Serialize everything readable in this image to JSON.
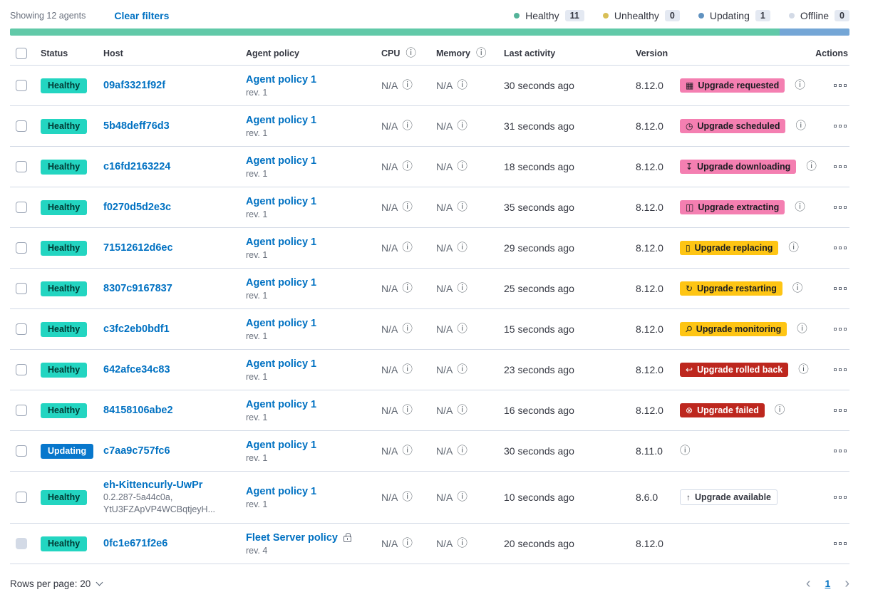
{
  "toolbar": {
    "showing": "Showing 12 agents",
    "clear_filters": "Clear filters",
    "legend": [
      {
        "label": "Healthy",
        "count": "11",
        "dot_color": "#54B399"
      },
      {
        "label": "Unhealthy",
        "count": "0",
        "dot_color": "#D8BF57"
      },
      {
        "label": "Updating",
        "count": "1",
        "dot_color": "#6092C0"
      },
      {
        "label": "Offline",
        "count": "0",
        "dot_color": "#D3DAE6"
      }
    ]
  },
  "status_bar": {
    "segments": [
      {
        "status": "healthy",
        "color": "#61C9A8",
        "fraction": 0.9167
      },
      {
        "status": "updating",
        "color": "#74A6D6",
        "fraction": 0.0833
      }
    ]
  },
  "table": {
    "headers": [
      {
        "label": "Status"
      },
      {
        "label": "Host"
      },
      {
        "label": "Agent policy"
      },
      {
        "label": "CPU",
        "info": true
      },
      {
        "label": "Memory",
        "info": true
      },
      {
        "label": "Last activity"
      },
      {
        "label": "Version"
      },
      {
        "label": "Actions"
      }
    ],
    "rows": [
      {
        "status": {
          "label": "Healthy",
          "variant": "healthy"
        },
        "host": {
          "name": "09af3321f92f"
        },
        "policy": {
          "name": "Agent policy 1",
          "rev": "rev. 1"
        },
        "cpu": "N/A",
        "memory": "N/A",
        "last_activity": "30 seconds ago",
        "version": "8.12.0",
        "upgrade": {
          "label": "Upgrade requested",
          "variant": "pink",
          "icon": "calendar-icon"
        },
        "info": true
      },
      {
        "status": {
          "label": "Healthy",
          "variant": "healthy"
        },
        "host": {
          "name": "5b48deff76d3"
        },
        "policy": {
          "name": "Agent policy 1",
          "rev": "rev. 1"
        },
        "cpu": "N/A",
        "memory": "N/A",
        "last_activity": "31 seconds ago",
        "version": "8.12.0",
        "upgrade": {
          "label": "Upgrade scheduled",
          "variant": "pink",
          "icon": "clock-icon"
        },
        "info": true
      },
      {
        "status": {
          "label": "Healthy",
          "variant": "healthy"
        },
        "host": {
          "name": "c16fd2163224"
        },
        "policy": {
          "name": "Agent policy 1",
          "rev": "rev. 1"
        },
        "cpu": "N/A",
        "memory": "N/A",
        "last_activity": "18 seconds ago",
        "version": "8.12.0",
        "upgrade": {
          "label": "Upgrade downloading",
          "variant": "pink",
          "icon": "download-icon"
        },
        "info": true
      },
      {
        "status": {
          "label": "Healthy",
          "variant": "healthy"
        },
        "host": {
          "name": "f0270d5d2e3c"
        },
        "policy": {
          "name": "Agent policy 1",
          "rev": "rev. 1"
        },
        "cpu": "N/A",
        "memory": "N/A",
        "last_activity": "35 seconds ago",
        "version": "8.12.0",
        "upgrade": {
          "label": "Upgrade extracting",
          "variant": "pink",
          "icon": "package-icon"
        },
        "info": true
      },
      {
        "status": {
          "label": "Healthy",
          "variant": "healthy"
        },
        "host": {
          "name": "71512612d6ec"
        },
        "policy": {
          "name": "Agent policy 1",
          "rev": "rev. 1"
        },
        "cpu": "N/A",
        "memory": "N/A",
        "last_activity": "29 seconds ago",
        "version": "8.12.0",
        "upgrade": {
          "label": "Upgrade replacing",
          "variant": "warning",
          "icon": "document-icon"
        },
        "info": true
      },
      {
        "status": {
          "label": "Healthy",
          "variant": "healthy"
        },
        "host": {
          "name": "8307c9167837"
        },
        "policy": {
          "name": "Agent policy 1",
          "rev": "rev. 1"
        },
        "cpu": "N/A",
        "memory": "N/A",
        "last_activity": "25 seconds ago",
        "version": "8.12.0",
        "upgrade": {
          "label": "Upgrade restarting",
          "variant": "warning",
          "icon": "refresh-icon"
        },
        "info": true
      },
      {
        "status": {
          "label": "Healthy",
          "variant": "healthy"
        },
        "host": {
          "name": "c3fc2eb0bdf1"
        },
        "policy": {
          "name": "Agent policy 1",
          "rev": "rev. 1"
        },
        "cpu": "N/A",
        "memory": "N/A",
        "last_activity": "15 seconds ago",
        "version": "8.12.0",
        "upgrade": {
          "label": "Upgrade monitoring",
          "variant": "warning",
          "icon": "inspect-icon"
        },
        "info": true
      },
      {
        "status": {
          "label": "Healthy",
          "variant": "healthy"
        },
        "host": {
          "name": "642afce34c83"
        },
        "policy": {
          "name": "Agent policy 1",
          "rev": "rev. 1"
        },
        "cpu": "N/A",
        "memory": "N/A",
        "last_activity": "23 seconds ago",
        "version": "8.12.0",
        "upgrade": {
          "label": "Upgrade rolled back",
          "variant": "danger",
          "icon": "return-icon"
        },
        "info": true
      },
      {
        "status": {
          "label": "Healthy",
          "variant": "healthy"
        },
        "host": {
          "name": "84158106abe2"
        },
        "policy": {
          "name": "Agent policy 1",
          "rev": "rev. 1"
        },
        "cpu": "N/A",
        "memory": "N/A",
        "last_activity": "16 seconds ago",
        "version": "8.12.0",
        "upgrade": {
          "label": "Upgrade failed",
          "variant": "danger",
          "icon": "cross-circle-icon"
        },
        "info": true
      },
      {
        "status": {
          "label": "Updating",
          "variant": "updating"
        },
        "host": {
          "name": "c7aa9c757fc6"
        },
        "policy": {
          "name": "Agent policy 1",
          "rev": "rev. 1"
        },
        "cpu": "N/A",
        "memory": "N/A",
        "last_activity": "30 seconds ago",
        "version": "8.11.0",
        "upgrade": null,
        "info": true
      },
      {
        "status": {
          "label": "Healthy",
          "variant": "healthy"
        },
        "host": {
          "name": "eh-Kittencurly-UwPr",
          "sublines": [
            "0.2.287-5a44c0a,",
            "YtU3FZApVP4WCBqtjeyH..."
          ]
        },
        "policy": {
          "name": "Agent policy 1",
          "rev": "rev. 1"
        },
        "cpu": "N/A",
        "memory": "N/A",
        "last_activity": "10 seconds ago",
        "version": "8.6.0",
        "upgrade": {
          "label": "Upgrade available",
          "variant": "hollow",
          "icon": "arrow-up-icon"
        },
        "info": false,
        "tall": true
      },
      {
        "status": {
          "label": "Healthy",
          "variant": "healthy"
        },
        "host": {
          "name": "0fc1e671f2e6"
        },
        "policy": {
          "name": "Fleet Server policy",
          "rev": "rev. 4",
          "locked": true
        },
        "cpu": "N/A",
        "memory": "N/A",
        "last_activity": "20 seconds ago",
        "version": "8.12.0",
        "upgrade": null,
        "info": false,
        "checkbox_disabled": true
      }
    ]
  },
  "footer": {
    "rows_per_page": "Rows per page: 20",
    "page": "1"
  }
}
